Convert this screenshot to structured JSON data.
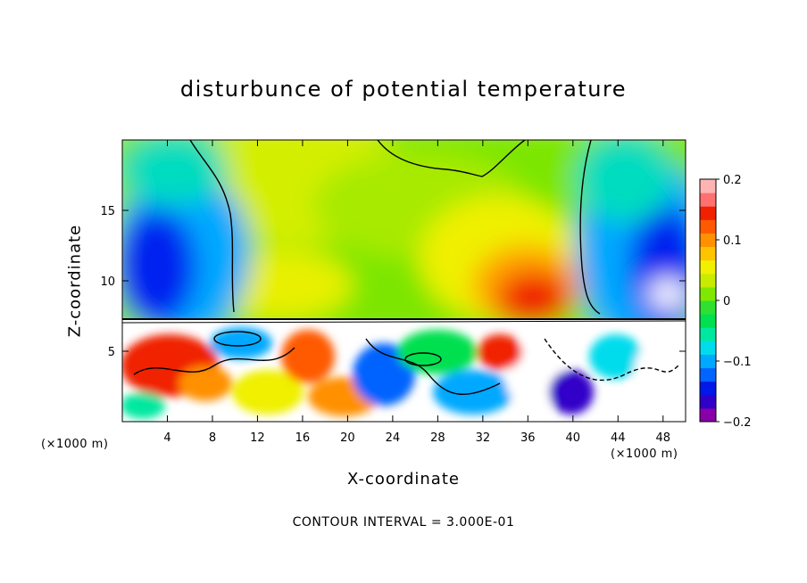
{
  "chart_data": {
    "type": "heatmap",
    "title": "disturbunce of potential temperature",
    "xlabel": "X-coordinate",
    "ylabel": "Z-coordinate",
    "x_unit": "(×1000 m)",
    "x_ticks": [
      4,
      8,
      12,
      16,
      20,
      24,
      28,
      32,
      36,
      40,
      44,
      48
    ],
    "y_ticks": [
      5,
      10,
      15
    ],
    "xlim": [
      0,
      50
    ],
    "ylim": [
      0,
      20
    ],
    "colorbar": {
      "min": -0.2,
      "max": 0.2,
      "ticks": [
        "0.2",
        "0.1",
        "0",
        "−0.1",
        "−0.2"
      ],
      "tick_values": [
        0.2,
        0.1,
        0,
        -0.1,
        -0.2
      ],
      "colors": [
        "#8a00a8",
        "#3000c8",
        "#0018e8",
        "#0064ff",
        "#00a8ff",
        "#00dcec",
        "#00e8a0",
        "#00e050",
        "#30e030",
        "#80e800",
        "#c8ec00",
        "#f0f000",
        "#ffc400",
        "#ff9000",
        "#ff5a00",
        "#f02000",
        "#ff7070",
        "#ffb4b4"
      ]
    },
    "contour_interval_text": "CONTOUR INTERVAL = 3.000E-01"
  }
}
